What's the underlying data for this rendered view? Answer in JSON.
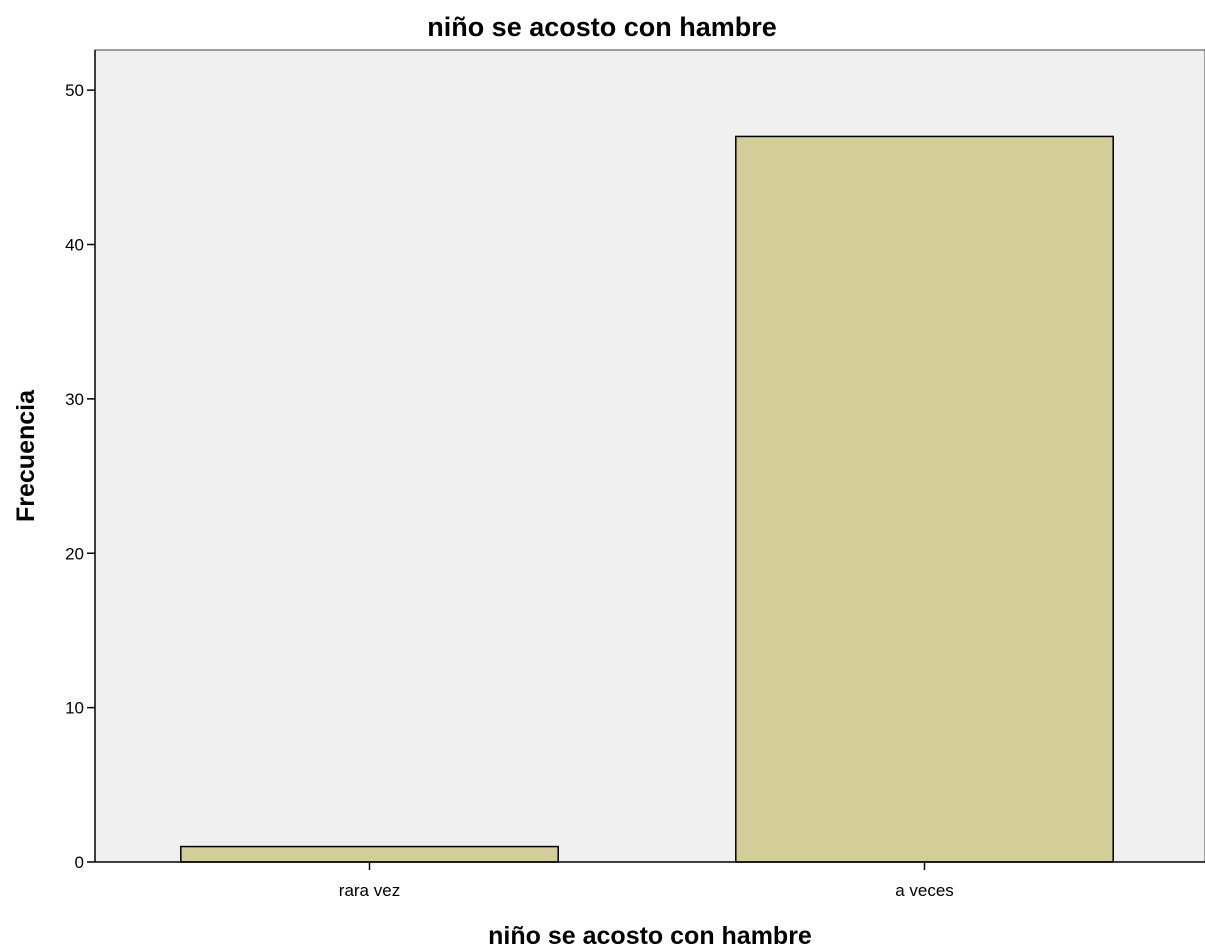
{
  "chart_data": {
    "type": "bar",
    "title": "niño se acosto con hambre",
    "xlabel": "niño se acosto con hambre",
    "ylabel": "Frecuencia",
    "categories": [
      "rara vez",
      "a veces"
    ],
    "values": [
      1,
      47
    ],
    "ylim": [
      0,
      52.6
    ],
    "yticks": [
      0,
      10,
      20,
      30,
      40,
      50
    ],
    "grid": false,
    "colors": {
      "plot_background": "#f0f0f0",
      "bar_fill": "#d3ce97",
      "bar_stroke": "#000000"
    }
  }
}
